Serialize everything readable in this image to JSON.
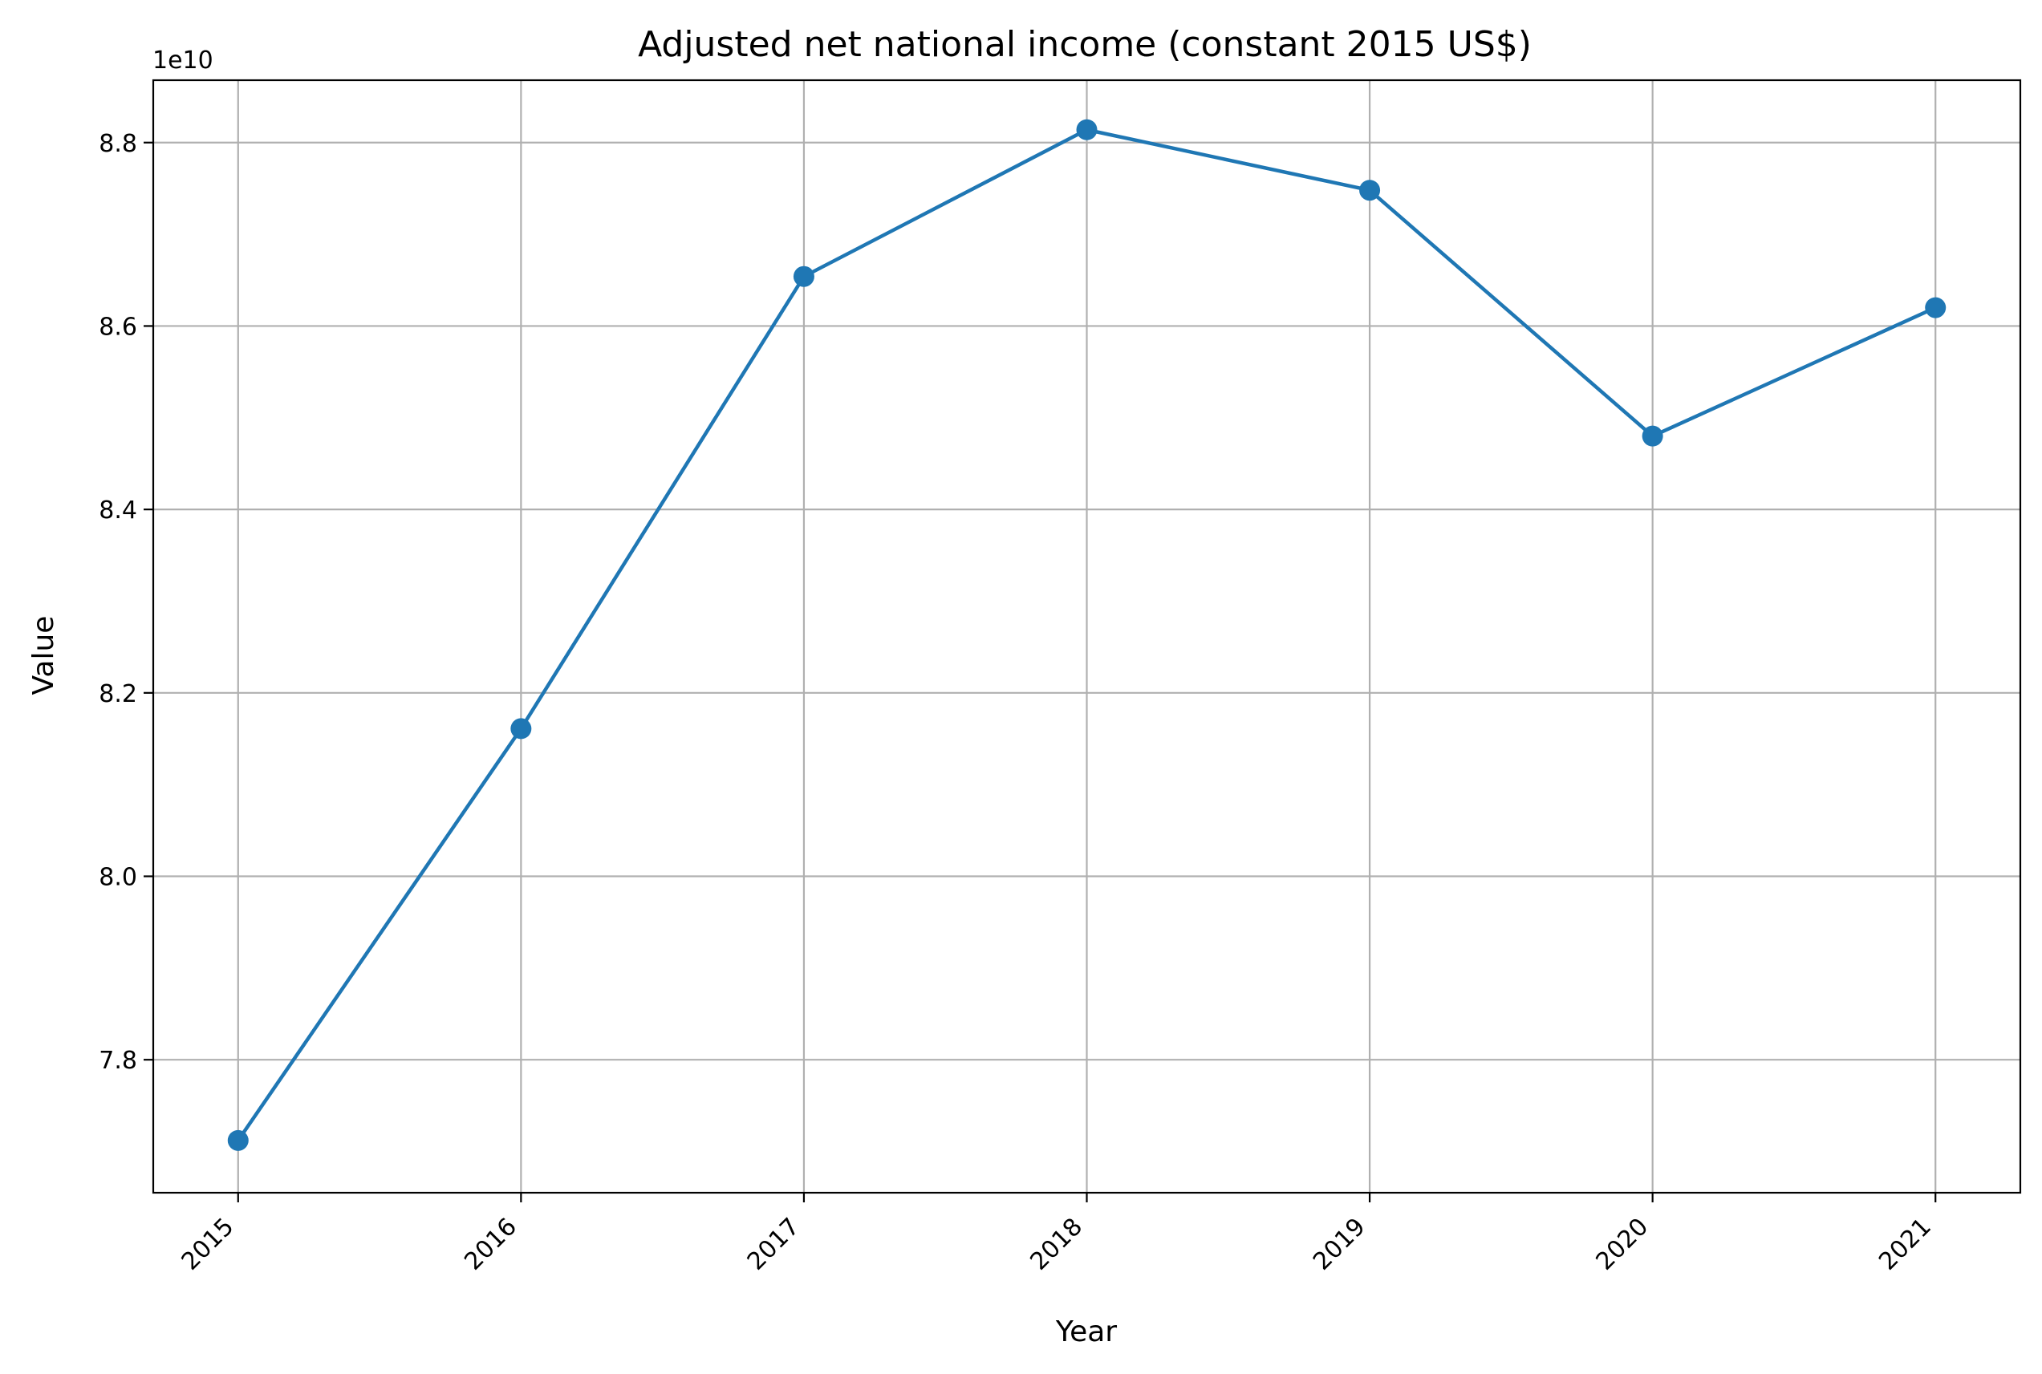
{
  "chart_data": {
    "type": "line",
    "title": "Adjusted net national income (constant 2015 US$)",
    "xlabel": "Year",
    "ylabel": "Value",
    "y_offset_label": "1e10",
    "x": [
      2015,
      2016,
      2017,
      2018,
      2019,
      2020,
      2021
    ],
    "x_tick_labels": [
      "2015",
      "2016",
      "2017",
      "2018",
      "2019",
      "2020",
      "2021"
    ],
    "y_ticks": [
      7.8,
      8.0,
      8.2,
      8.4,
      8.6,
      8.8
    ],
    "y_tick_labels": [
      "7.8",
      "8.0",
      "8.2",
      "8.4",
      "8.6",
      "8.8"
    ],
    "ylim": [
      7.655,
      8.868
    ],
    "xlim": [
      2014.7,
      2021.3
    ],
    "grid": true,
    "series": [
      {
        "color": "#1f77b4",
        "marker": "circle",
        "values": [
          7.712,
          8.161,
          8.654,
          8.814,
          8.748,
          8.48,
          8.62
        ]
      }
    ]
  }
}
